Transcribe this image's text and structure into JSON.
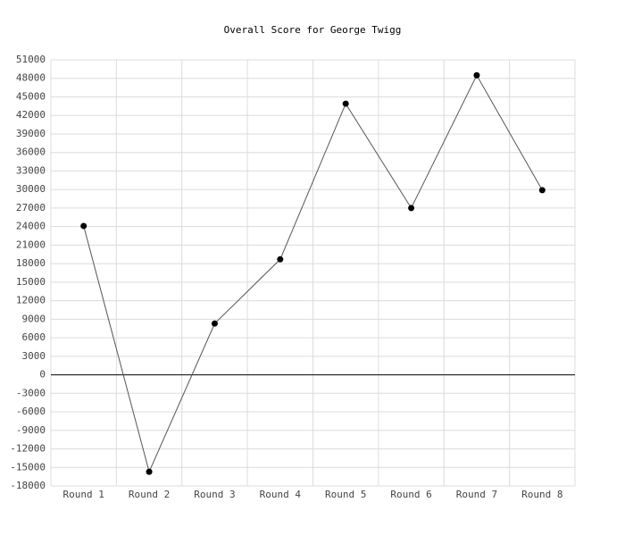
{
  "chart_data": {
    "type": "line",
    "title": "Overall Score for George Twigg",
    "categories": [
      "Round 1",
      "Round 2",
      "Round 3",
      "Round 4",
      "Round 5",
      "Round 6",
      "Round 7",
      "Round 8"
    ],
    "values": [
      24100,
      -15700,
      8300,
      18700,
      43900,
      27000,
      48500,
      29900
    ],
    "color": "#000000",
    "ylim": [
      -18000,
      51000
    ],
    "yticks": [
      -18000,
      -15000,
      -12000,
      -9000,
      -6000,
      -3000,
      0,
      3000,
      6000,
      9000,
      12000,
      15000,
      18000,
      21000,
      24000,
      27000,
      30000,
      33000,
      36000,
      39000,
      42000,
      45000,
      48000,
      51000
    ],
    "grid": true
  }
}
